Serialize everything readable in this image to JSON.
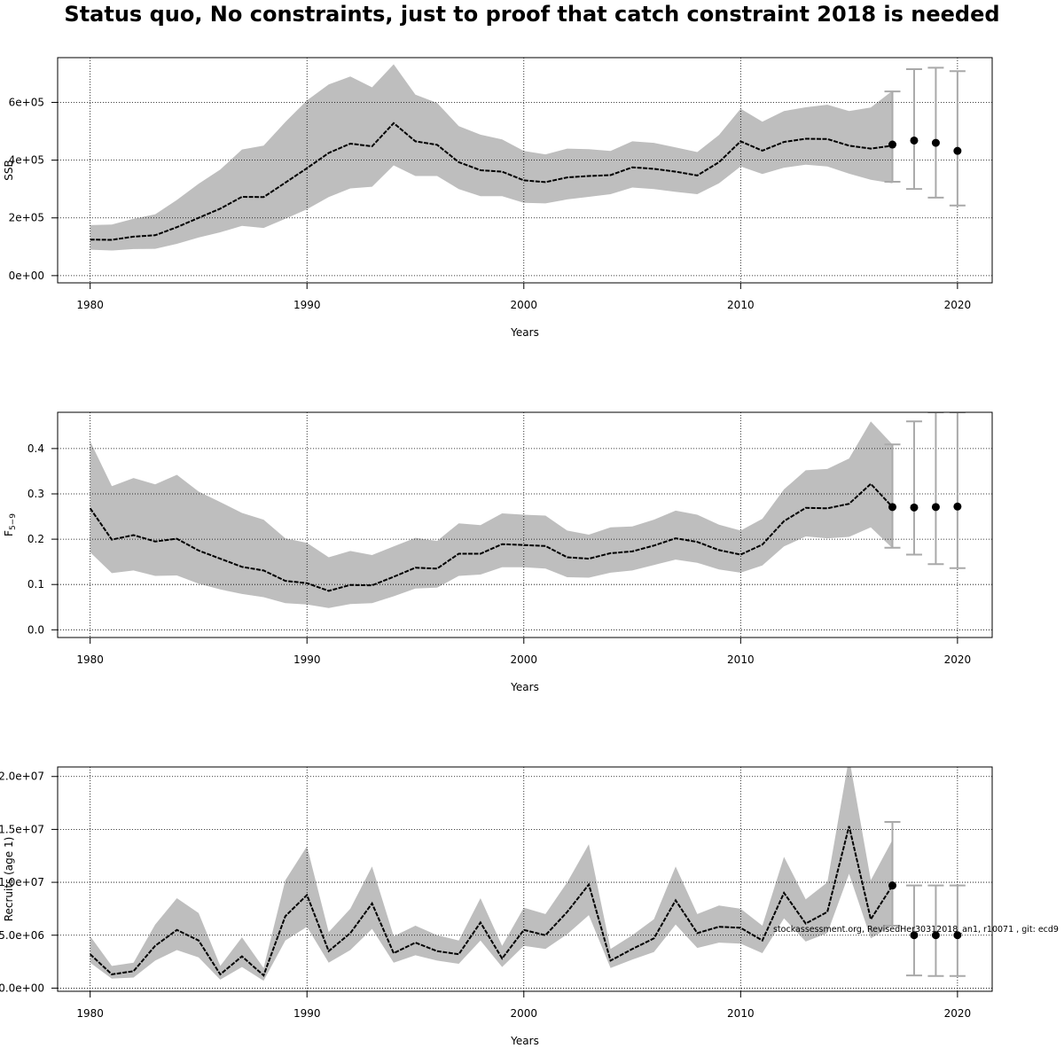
{
  "title": "Status quo, No constraints, just to proof that catch constraint 2018 is needed",
  "footnote": "stockassessment.org, RevisedHer30312018_an1, r10071 , git: ecd9",
  "colors": {
    "band": "#bebebe",
    "line": "#000000",
    "whisker": "#a9a9a9",
    "grid": "#000000"
  },
  "chart_data": [
    {
      "type": "line",
      "ylabel": "SSB",
      "xlabel": "Years",
      "xlim": [
        1978.5,
        2021.6
      ],
      "ylim": [
        -25000,
        755000
      ],
      "x_ticks": [
        1980,
        1990,
        2000,
        2010,
        2020
      ],
      "x_tick_labels": [
        "1980",
        "1990",
        "2000",
        "2010",
        "2020"
      ],
      "y_ticks": [
        0,
        200000,
        400000,
        600000
      ],
      "y_tick_labels": [
        "0e+00",
        "2e+05",
        "4e+05",
        "6e+05"
      ],
      "grid": true,
      "series": [
        {
          "x": [
            1980,
            1981,
            1982,
            1983,
            1984,
            1985,
            1986,
            1987,
            1988,
            1989,
            1990,
            1991,
            1992,
            1993,
            1994,
            1995,
            1996,
            1997,
            1998,
            1999,
            2000,
            2001,
            2002,
            2003,
            2004,
            2005,
            2006,
            2007,
            2008,
            2009,
            2010,
            2011,
            2012,
            2013,
            2014,
            2015,
            2016,
            2017
          ],
          "y": [
            125000,
            124000,
            135000,
            140000,
            168000,
            200000,
            232000,
            273000,
            272000,
            322000,
            372000,
            425000,
            457000,
            448000,
            528000,
            465000,
            453000,
            393000,
            365000,
            360000,
            330000,
            324000,
            340000,
            345000,
            348000,
            375000,
            370000,
            360000,
            347000,
            393000,
            465000,
            433000,
            463000,
            474000,
            473000,
            450000,
            440000,
            450000
          ],
          "lower": [
            90000,
            87000,
            92000,
            93000,
            110000,
            132000,
            150000,
            172000,
            165000,
            197000,
            230000,
            272000,
            302000,
            308000,
            382000,
            345000,
            345000,
            300000,
            275000,
            275000,
            252000,
            250000,
            264000,
            273000,
            282000,
            305000,
            300000,
            290000,
            282000,
            320000,
            378000,
            352000,
            374000,
            384000,
            378000,
            353000,
            332000,
            320000
          ],
          "upper": [
            175000,
            177000,
            197000,
            212000,
            262000,
            318000,
            367000,
            437000,
            450000,
            532000,
            607000,
            662000,
            690000,
            652000,
            732000,
            627000,
            598000,
            518000,
            488000,
            472000,
            432000,
            420000,
            440000,
            438000,
            432000,
            465000,
            460000,
            444000,
            428000,
            487000,
            578000,
            533000,
            570000,
            583000,
            592000,
            570000,
            582000,
            640000
          ]
        }
      ],
      "forecast": {
        "x": [
          2017,
          2018,
          2019,
          2020
        ],
        "y": [
          454000,
          468000,
          460000,
          432000
        ],
        "lower": [
          325000,
          300000,
          270000,
          243000
        ],
        "upper": [
          638000,
          715000,
          720000,
          708000
        ]
      }
    },
    {
      "type": "line",
      "ylabel": "F5-9",
      "ylabel_base": "F",
      "ylabel_sub": "5−9",
      "xlabel": "Years",
      "xlim": [
        1978.5,
        2021.6
      ],
      "ylim": [
        -0.017,
        0.48
      ],
      "x_ticks": [
        1980,
        1990,
        2000,
        2010,
        2020
      ],
      "x_tick_labels": [
        "1980",
        "1990",
        "2000",
        "2010",
        "2020"
      ],
      "y_ticks": [
        0.0,
        0.1,
        0.2,
        0.3,
        0.4
      ],
      "y_tick_labels": [
        "0.0",
        "0.1",
        "0.2",
        "0.3",
        "0.4"
      ],
      "grid": true,
      "series": [
        {
          "x": [
            1980,
            1981,
            1982,
            1983,
            1984,
            1985,
            1986,
            1987,
            1988,
            1989,
            1990,
            1991,
            1992,
            1993,
            1994,
            1995,
            1996,
            1997,
            1998,
            1999,
            2000,
            2001,
            2002,
            2003,
            2004,
            2005,
            2006,
            2007,
            2008,
            2009,
            2010,
            2011,
            2012,
            2013,
            2014,
            2015,
            2016,
            2017
          ],
          "y": [
            0.268,
            0.199,
            0.209,
            0.195,
            0.201,
            0.175,
            0.157,
            0.139,
            0.131,
            0.108,
            0.103,
            0.086,
            0.099,
            0.098,
            0.117,
            0.137,
            0.135,
            0.168,
            0.168,
            0.189,
            0.187,
            0.185,
            0.16,
            0.157,
            0.169,
            0.173,
            0.186,
            0.202,
            0.194,
            0.176,
            0.166,
            0.188,
            0.24,
            0.269,
            0.268,
            0.278,
            0.322,
            0.271
          ],
          "lower": [
            0.171,
            0.125,
            0.131,
            0.119,
            0.12,
            0.102,
            0.089,
            0.079,
            0.072,
            0.059,
            0.056,
            0.048,
            0.057,
            0.059,
            0.074,
            0.091,
            0.093,
            0.119,
            0.122,
            0.138,
            0.138,
            0.135,
            0.116,
            0.115,
            0.126,
            0.131,
            0.143,
            0.155,
            0.148,
            0.133,
            0.126,
            0.142,
            0.184,
            0.206,
            0.202,
            0.205,
            0.226,
            0.18
          ],
          "upper": [
            0.416,
            0.317,
            0.335,
            0.321,
            0.342,
            0.305,
            0.282,
            0.258,
            0.243,
            0.202,
            0.192,
            0.16,
            0.174,
            0.165,
            0.184,
            0.203,
            0.196,
            0.235,
            0.231,
            0.257,
            0.254,
            0.252,
            0.219,
            0.21,
            0.226,
            0.228,
            0.243,
            0.263,
            0.254,
            0.232,
            0.219,
            0.245,
            0.31,
            0.352,
            0.355,
            0.378,
            0.46,
            0.409
          ]
        }
      ],
      "forecast": {
        "x": [
          2017,
          2018,
          2019,
          2020
        ],
        "y": [
          0.271,
          0.27,
          0.271,
          0.272
        ],
        "lower": [
          0.181,
          0.166,
          0.145,
          0.136
        ],
        "upper": [
          0.409,
          0.46,
          0.48,
          0.48
        ]
      }
    },
    {
      "type": "line",
      "ylabel": "Recruits (age 1)",
      "xlabel": "Years",
      "xlim": [
        1978.5,
        2021.6
      ],
      "ylim": [
        -300000,
        20900000
      ],
      "x_ticks": [
        1980,
        1990,
        2000,
        2010,
        2020
      ],
      "x_tick_labels": [
        "1980",
        "1990",
        "2000",
        "2010",
        "2020"
      ],
      "y_ticks": [
        0,
        5000000,
        10000000,
        15000000,
        20000000
      ],
      "y_tick_labels": [
        "0.0e+00",
        "5.0e+06",
        "1.0e+07",
        "1.5e+07",
        "2.0e+07"
      ],
      "grid": true,
      "series": [
        {
          "x": [
            1980,
            1981,
            1982,
            1983,
            1984,
            1985,
            1986,
            1987,
            1988,
            1989,
            1990,
            1991,
            1992,
            1993,
            1994,
            1995,
            1996,
            1997,
            1998,
            1999,
            2000,
            2001,
            2002,
            2003,
            2004,
            2005,
            2006,
            2007,
            2008,
            2009,
            2010,
            2011,
            2012,
            2013,
            2014,
            2015,
            2016,
            2017
          ],
          "y": [
            3200000,
            1300000,
            1600000,
            4000000,
            5500000,
            4500000,
            1300000,
            3000000,
            1200000,
            6800000,
            8800000,
            3500000,
            5200000,
            8000000,
            3300000,
            4300000,
            3500000,
            3200000,
            6200000,
            2800000,
            5500000,
            5000000,
            7200000,
            9800000,
            2600000,
            3700000,
            4700000,
            8300000,
            5200000,
            5800000,
            5700000,
            4500000,
            9000000,
            6100000,
            7200000,
            15300000,
            6500000,
            9700000
          ],
          "lower": [
            2400000,
            900000,
            1000000,
            2600000,
            3600000,
            2900000,
            800000,
            2000000,
            700000,
            4500000,
            5800000,
            2400000,
            3600000,
            5600000,
            2400000,
            3100000,
            2600000,
            2300000,
            4500000,
            2000000,
            4000000,
            3700000,
            5100000,
            6900000,
            1900000,
            2700000,
            3400000,
            6000000,
            3800000,
            4300000,
            4200000,
            3300000,
            6600000,
            4400000,
            5200000,
            10800000,
            4700000,
            5900000
          ],
          "upper": [
            4900000,
            2100000,
            2400000,
            6000000,
            8500000,
            7100000,
            2100000,
            4800000,
            1900000,
            10200000,
            13400000,
            5300000,
            7500000,
            11500000,
            4900000,
            5900000,
            5000000,
            4500000,
            8500000,
            4000000,
            7600000,
            7000000,
            10000000,
            13600000,
            3700000,
            5000000,
            6500000,
            11500000,
            7000000,
            7800000,
            7500000,
            5900000,
            12400000,
            8400000,
            10000000,
            21800000,
            10200000,
            14000000
          ]
        }
      ],
      "forecast": {
        "x": [
          2017,
          2018,
          2019,
          2020
        ],
        "y": [
          9700000,
          5000000,
          5000000,
          5000000
        ],
        "lower": [
          5900000,
          1200000,
          1150000,
          1150000
        ],
        "upper": [
          15700000,
          9700000,
          9700000,
          9700000
        ]
      }
    }
  ]
}
